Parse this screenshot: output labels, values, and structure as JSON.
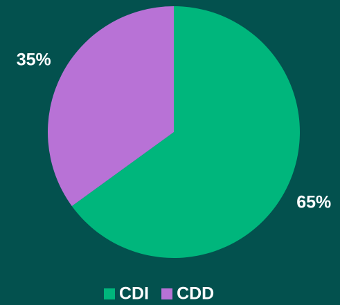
{
  "chart_data": {
    "type": "pie",
    "categories": [
      "CDI",
      "CDD"
    ],
    "values": [
      65,
      35
    ],
    "value_labels": [
      "65%",
      "35%"
    ],
    "colors": [
      "#00b67c",
      "#b872d6"
    ],
    "legend": "bottom"
  }
}
